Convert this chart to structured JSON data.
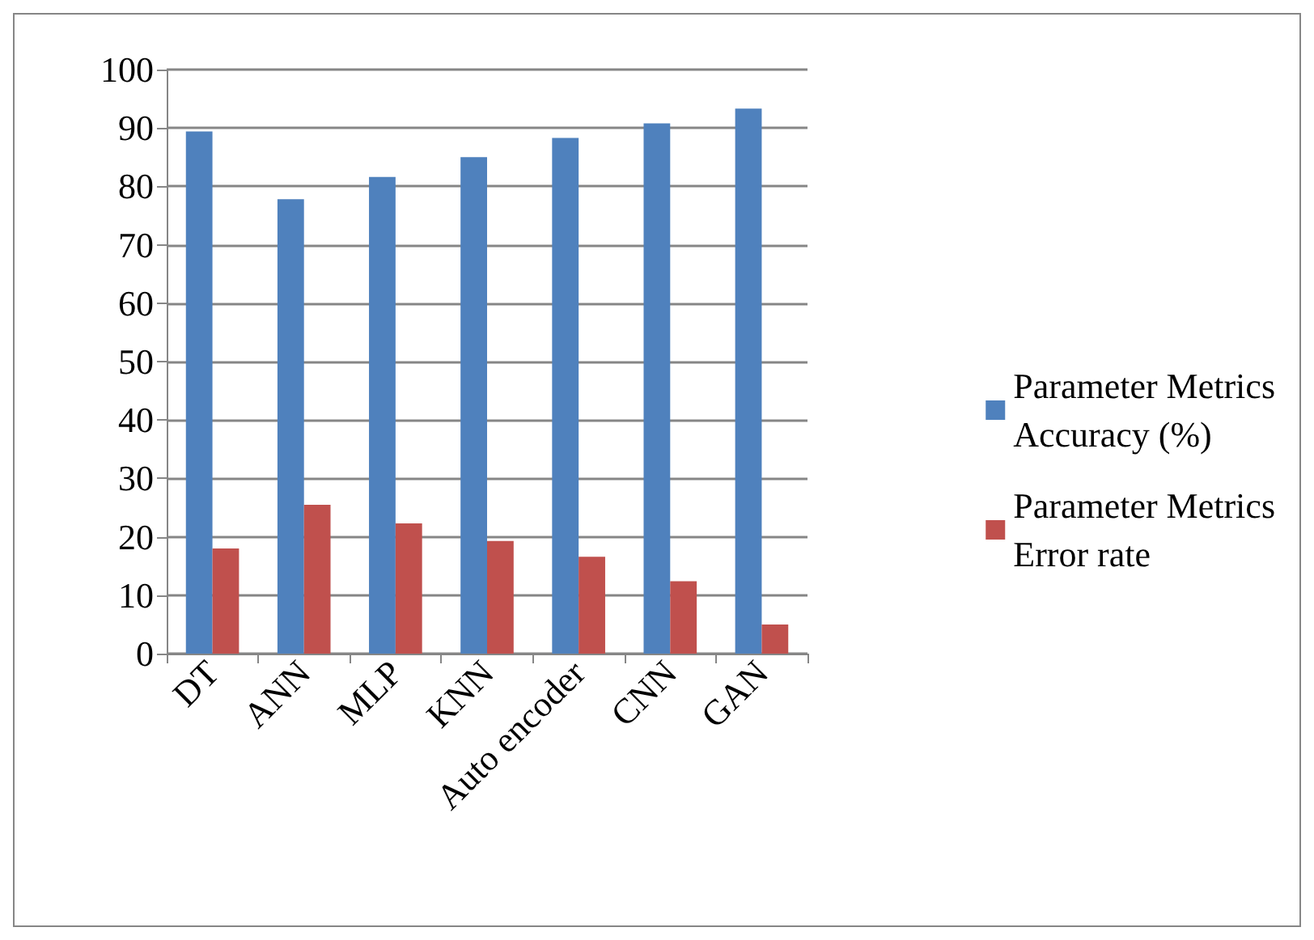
{
  "chart_data": {
    "type": "bar",
    "categories": [
      "DT",
      "ANN",
      "MLP",
      "KNN",
      "Auto encoder",
      "CNN",
      "GAN"
    ],
    "series": [
      {
        "name": "Parameter Metrics Accuracy (%)",
        "color": "#4f81bd",
        "values": [
          89.4,
          77.8,
          81.6,
          85.0,
          88.3,
          90.8,
          93.3
        ]
      },
      {
        "name": "Parameter Metrics Error rate",
        "color": "#c0504d",
        "values": [
          18.0,
          25.5,
          22.3,
          19.3,
          16.6,
          12.4,
          5.0
        ]
      }
    ],
    "ylim": [
      0,
      100
    ],
    "yticks": [
      0,
      10,
      20,
      30,
      40,
      50,
      60,
      70,
      80,
      90,
      100
    ],
    "grid": "y",
    "legend": "right"
  }
}
